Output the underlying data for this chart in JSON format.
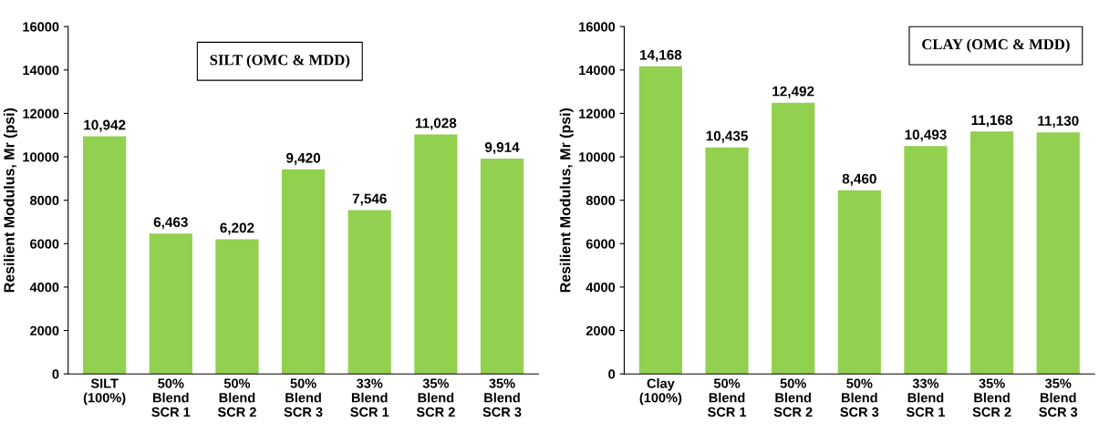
{
  "chart_data": [
    {
      "type": "bar",
      "title": "SILT (OMC & MDD)",
      "ylabel": "Resilient Modulus, Mr (psi)",
      "categories": [
        "SILT\n(100%)",
        "50%\nBlend\nSCR 1",
        "50%\nBlend\nSCR 2",
        "50%\nBlend\nSCR 3",
        "33%\nBlend\nSCR 1",
        "35%\nBlend\nSCR 2",
        "35%\nBlend\nSCR 3"
      ],
      "values": [
        10942,
        6463,
        6202,
        9420,
        7546,
        11028,
        9914
      ],
      "value_labels": [
        "10,942",
        "6,463",
        "6,202",
        "9,420",
        "7,546",
        "11,028",
        "9,914"
      ],
      "color": "#92d050",
      "ylim": [
        0,
        16000
      ],
      "yticks": [
        0,
        2000,
        4000,
        6000,
        8000,
        10000,
        12000,
        14000,
        16000
      ],
      "grid": false,
      "legend": false
    },
    {
      "type": "bar",
      "title": "CLAY (OMC & MDD)",
      "ylabel": "Resilient Modulus, Mr (psi)",
      "categories": [
        "Clay\n(100%)",
        "50%\nBlend\nSCR 1",
        "50%\nBlend\nSCR 2",
        "50%\nBlend\nSCR 3",
        "33%\nBlend\nSCR 1",
        "35%\nBlend\nSCR 2",
        "35%\nBlend\nSCR 3"
      ],
      "values": [
        14168,
        10435,
        12492,
        8460,
        10493,
        11168,
        11130
      ],
      "value_labels": [
        "14,168",
        "10,435",
        "12,492",
        "8,460",
        "10,493",
        "11,168",
        "11,130"
      ],
      "color": "#92d050",
      "ylim": [
        0,
        16000
      ],
      "yticks": [
        0,
        2000,
        4000,
        6000,
        8000,
        10000,
        12000,
        14000,
        16000
      ],
      "grid": false,
      "legend": false
    }
  ]
}
